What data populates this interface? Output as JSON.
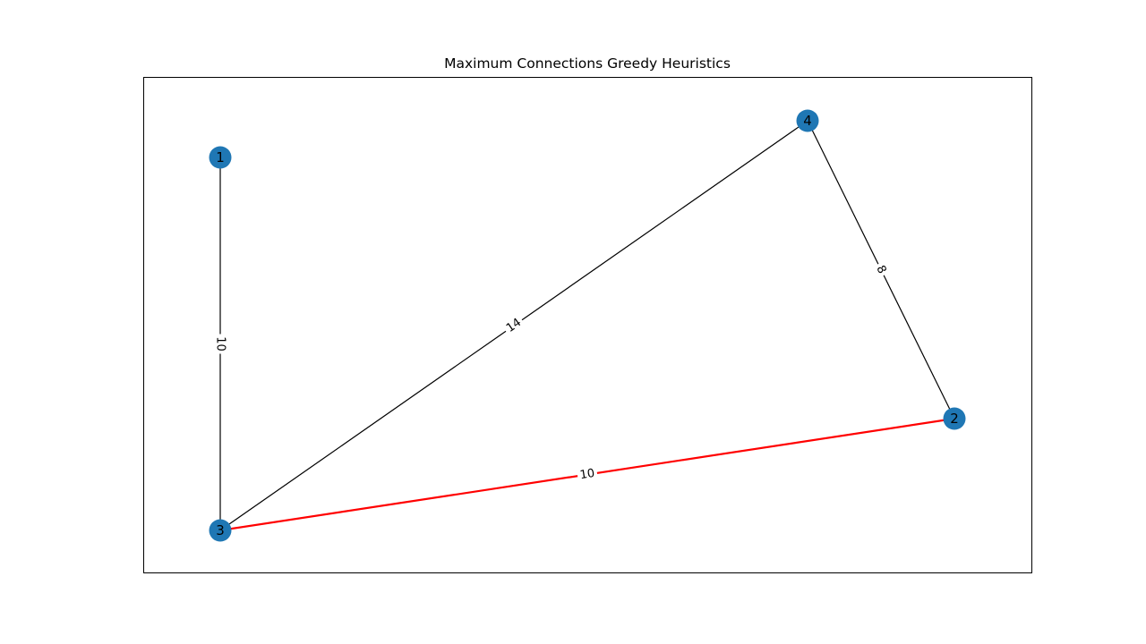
{
  "title": "Maximum Connections Greedy Heuristics",
  "colors": {
    "node": "#1f77b4",
    "edge": "#000000",
    "highlight": "#ff0000",
    "frame": "#000000",
    "background": "#ffffff"
  },
  "nodes": [
    {
      "id": "1",
      "label": "1"
    },
    {
      "id": "2",
      "label": "2"
    },
    {
      "id": "3",
      "label": "3"
    },
    {
      "id": "4",
      "label": "4"
    }
  ],
  "edges": [
    {
      "source": "1",
      "target": "3",
      "weight": "10",
      "highlighted": false
    },
    {
      "source": "3",
      "target": "4",
      "weight": "14",
      "highlighted": false
    },
    {
      "source": "4",
      "target": "2",
      "weight": "8",
      "highlighted": false
    },
    {
      "source": "3",
      "target": "2",
      "weight": "10",
      "highlighted": true
    }
  ]
}
